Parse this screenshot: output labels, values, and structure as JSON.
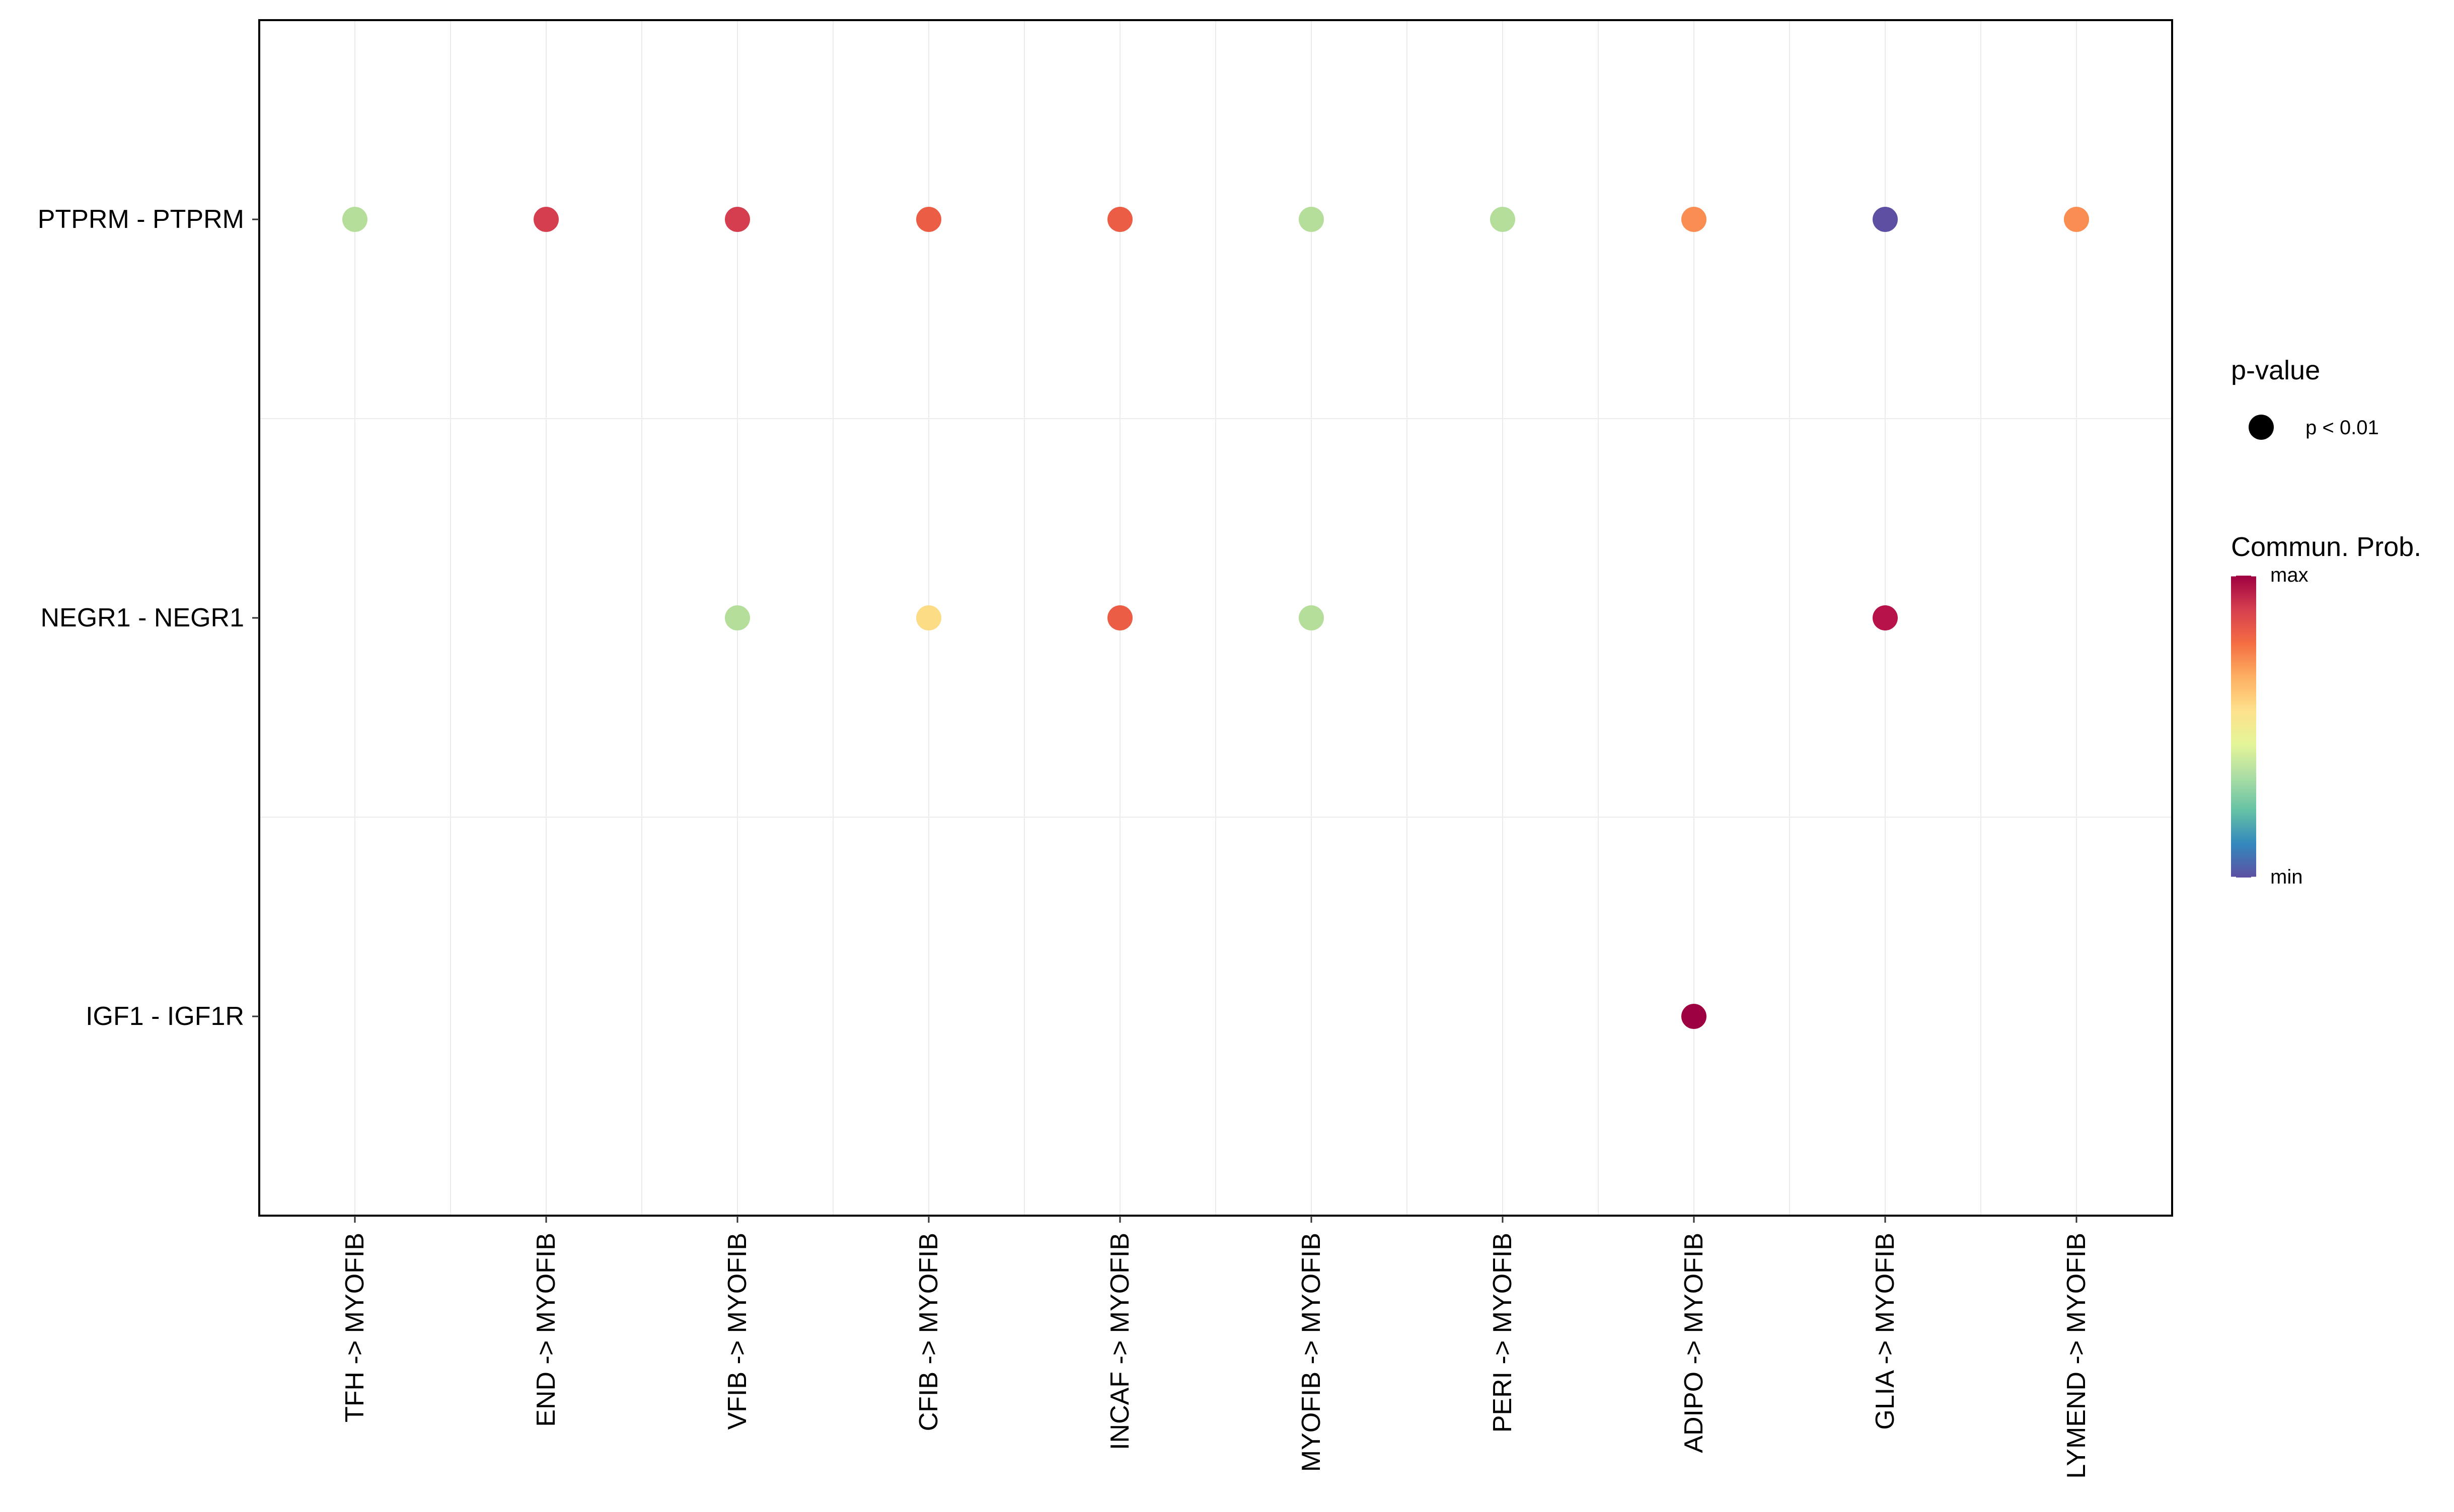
{
  "chart_data": {
    "type": "scatter",
    "title": "",
    "xlabel": "",
    "ylabel": "",
    "grid": true,
    "x_categories": [
      "TFH -> MYOFIB",
      "END -> MYOFIB",
      "VFIB -> MYOFIB",
      "CFIB -> MYOFIB",
      "INCAF -> MYOFIB",
      "MYOFIB -> MYOFIB",
      "PERI -> MYOFIB",
      "ADIPO -> MYOFIB",
      "GLIA -> MYOFIB",
      "LYMEND -> MYOFIB"
    ],
    "y_categories": [
      "PTPRM - PTPRM",
      "NEGR1 - NEGR1",
      "IGF1 - IGF1R"
    ],
    "points": [
      {
        "x": "TFH -> MYOFIB",
        "y": "PTPRM - PTPRM",
        "prob": 0.35,
        "color": "#B5DE9B"
      },
      {
        "x": "END -> MYOFIB",
        "y": "PTPRM - PTPRM",
        "prob": 0.92,
        "color": "#D53E4F"
      },
      {
        "x": "VFIB -> MYOFIB",
        "y": "PTPRM - PTPRM",
        "prob": 0.92,
        "color": "#D53E4F"
      },
      {
        "x": "CFIB -> MYOFIB",
        "y": "PTPRM - PTPRM",
        "prob": 0.85,
        "color": "#EB5E45"
      },
      {
        "x": "INCAF -> MYOFIB",
        "y": "PTPRM - PTPRM",
        "prob": 0.85,
        "color": "#EB5E45"
      },
      {
        "x": "MYOFIB -> MYOFIB",
        "y": "PTPRM - PTPRM",
        "prob": 0.35,
        "color": "#B5DE9B"
      },
      {
        "x": "PERI -> MYOFIB",
        "y": "PTPRM - PTPRM",
        "prob": 0.35,
        "color": "#B5DE9B"
      },
      {
        "x": "ADIPO -> MYOFIB",
        "y": "PTPRM - PTPRM",
        "prob": 0.75,
        "color": "#F98D52"
      },
      {
        "x": "GLIA -> MYOFIB",
        "y": "PTPRM - PTPRM",
        "prob": 0.0,
        "color": "#5E4FA2"
      },
      {
        "x": "LYMEND -> MYOFIB",
        "y": "PTPRM - PTPRM",
        "prob": 0.75,
        "color": "#F98D52"
      },
      {
        "x": "VFIB -> MYOFIB",
        "y": "NEGR1 - NEGR1",
        "prob": 0.35,
        "color": "#B5DE9B"
      },
      {
        "x": "CFIB -> MYOFIB",
        "y": "NEGR1 - NEGR1",
        "prob": 0.55,
        "color": "#FDDC86"
      },
      {
        "x": "INCAF -> MYOFIB",
        "y": "NEGR1 - NEGR1",
        "prob": 0.85,
        "color": "#EB5E45"
      },
      {
        "x": "MYOFIB -> MYOFIB",
        "y": "NEGR1 - NEGR1",
        "prob": 0.35,
        "color": "#B5DE9B"
      },
      {
        "x": "GLIA -> MYOFIB",
        "y": "NEGR1 - NEGR1",
        "prob": 0.97,
        "color": "#B7134A"
      },
      {
        "x": "ADIPO -> MYOFIB",
        "y": "IGF1 - IGF1R",
        "prob": 1.0,
        "color": "#9E0142"
      }
    ],
    "legend": {
      "size_title": "p-value",
      "size_label": "p < 0.01",
      "color_title": "Commun. Prob.",
      "color_max_label": "max",
      "color_min_label": "min",
      "colors": [
        "#9E0142",
        "#D53E4F",
        "#F46D43",
        "#FDAE61",
        "#FEE08B",
        "#E6F598",
        "#ABDDA4",
        "#66C2A5",
        "#3288BD",
        "#5E4FA2"
      ]
    },
    "colors": {
      "panel_border": "#000000",
      "grid": "#EBEBEB",
      "background": "#FFFFFF"
    }
  }
}
